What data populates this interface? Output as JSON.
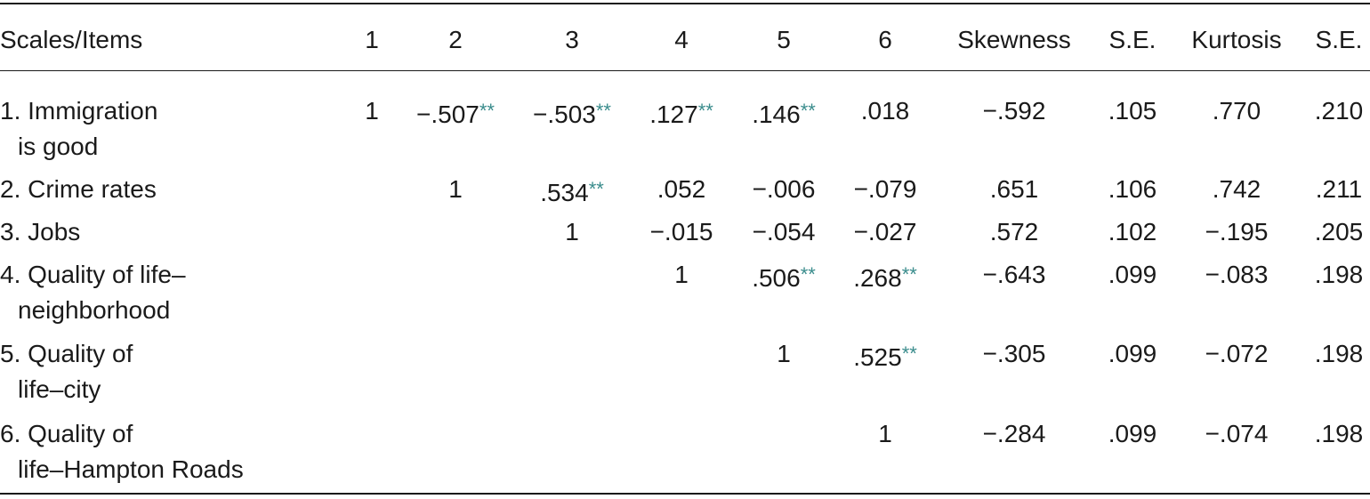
{
  "table": {
    "columns": [
      "Scales/Items",
      "1",
      "2",
      "3",
      "4",
      "5",
      "6",
      "Skewness",
      "S.E.",
      "Kurtosis",
      "S.E."
    ],
    "rows": [
      {
        "label": [
          "1. Immigration",
          "is good"
        ],
        "cells": [
          {
            "text": "1"
          },
          {
            "text": "−.507",
            "sig": "**"
          },
          {
            "text": "−.503",
            "sig": "**"
          },
          {
            "text": ".127",
            "sig": "**"
          },
          {
            "text": ".146",
            "sig": "**"
          },
          {
            "text": ".018"
          },
          {
            "text": "−.592"
          },
          {
            "text": ".105"
          },
          {
            "text": ".770"
          },
          {
            "text": ".210"
          }
        ]
      },
      {
        "label": [
          "2. Crime rates"
        ],
        "cells": [
          null,
          {
            "text": "1"
          },
          {
            "text": ".534",
            "sig": "**"
          },
          {
            "text": ".052"
          },
          {
            "text": "−.006"
          },
          {
            "text": "−.079"
          },
          {
            "text": ".651"
          },
          {
            "text": ".106"
          },
          {
            "text": ".742"
          },
          {
            "text": ".211"
          }
        ]
      },
      {
        "label": [
          "3. Jobs"
        ],
        "cells": [
          null,
          null,
          {
            "text": "1"
          },
          {
            "text": "−.015"
          },
          {
            "text": "−.054"
          },
          {
            "text": "−.027"
          },
          {
            "text": ".572"
          },
          {
            "text": ".102"
          },
          {
            "text": "−.195"
          },
          {
            "text": ".205"
          }
        ]
      },
      {
        "label": [
          "4. Quality of life–",
          "neighborhood"
        ],
        "cells": [
          null,
          null,
          null,
          {
            "text": "1"
          },
          {
            "text": ".506",
            "sig": "**"
          },
          {
            "text": ".268",
            "sig": "**"
          },
          {
            "text": "−.643"
          },
          {
            "text": ".099"
          },
          {
            "text": "−.083"
          },
          {
            "text": ".198"
          }
        ]
      },
      {
        "label": [
          "5. Quality of",
          "life–city"
        ],
        "cells": [
          null,
          null,
          null,
          null,
          {
            "text": "1"
          },
          {
            "text": ".525",
            "sig": "**"
          },
          {
            "text": "−.305"
          },
          {
            "text": ".099"
          },
          {
            "text": "−.072"
          },
          {
            "text": ".198"
          }
        ]
      },
      {
        "label": [
          "6. Quality of",
          "life–Hampton Roads"
        ],
        "cells": [
          null,
          null,
          null,
          null,
          null,
          {
            "text": "1"
          },
          {
            "text": "−.284"
          },
          {
            "text": ".099"
          },
          {
            "text": "−.074"
          },
          {
            "text": ".198"
          }
        ]
      }
    ]
  }
}
